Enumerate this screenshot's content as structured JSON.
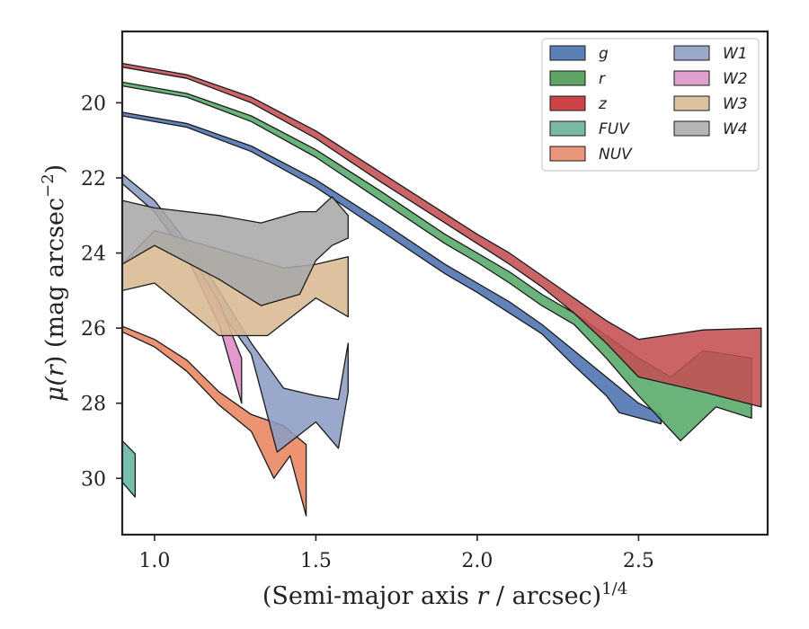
{
  "chart_data": {
    "type": "area",
    "xlabel": "(Semi-major axis r / arcsec)",
    "xlabel_parts": {
      "pre": "(Semi-major axis ",
      "var": "r",
      "post": " / arcsec)",
      "exp": "1/4"
    },
    "ylabel": "μ(r) (mag arcsec⁻²)",
    "ylabel_parts": {
      "mu": "μ(",
      "var": "r",
      "mid": ") (mag arcsec",
      "exp": "−2",
      "end": ")"
    },
    "xlim": [
      0.9,
      2.9
    ],
    "ylim": [
      31.5,
      18.1
    ],
    "y_inverted": true,
    "grid": false,
    "legend_position": "top-right",
    "legend_columns": 2,
    "xticks": [
      1.0,
      1.5,
      2.0,
      2.5
    ],
    "xtick_labels": [
      "1.0",
      "1.5",
      "2.0",
      "2.5"
    ],
    "yticks": [
      20,
      22,
      24,
      26,
      28,
      30
    ],
    "ytick_labels": [
      "20",
      "22",
      "24",
      "26",
      "28",
      "30"
    ],
    "series": [
      {
        "name": "g",
        "color": "#4c72b0",
        "legend_color": "#5a80b5",
        "upper": [
          [
            0.9,
            20.25
          ],
          [
            1.1,
            20.55
          ],
          [
            1.3,
            21.15
          ],
          [
            1.5,
            22.05
          ],
          [
            1.7,
            23.15
          ],
          [
            1.9,
            24.3
          ],
          [
            2.0,
            24.8
          ],
          [
            2.1,
            25.3
          ],
          [
            2.2,
            25.9
          ],
          [
            2.3,
            26.6
          ],
          [
            2.4,
            27.3
          ],
          [
            2.5,
            28.0
          ],
          [
            2.57,
            28.3
          ]
        ],
        "lower": [
          [
            0.9,
            20.35
          ],
          [
            1.1,
            20.65
          ],
          [
            1.3,
            21.3
          ],
          [
            1.5,
            22.25
          ],
          [
            1.7,
            23.4
          ],
          [
            1.9,
            24.55
          ],
          [
            2.0,
            25.05
          ],
          [
            2.1,
            25.6
          ],
          [
            2.2,
            26.15
          ],
          [
            2.3,
            27.0
          ],
          [
            2.4,
            27.8
          ],
          [
            2.44,
            28.25
          ],
          [
            2.57,
            28.55
          ]
        ]
      },
      {
        "name": "r",
        "color": "#55a868",
        "legend_color": "#5fa365",
        "upper": [
          [
            0.9,
            19.45
          ],
          [
            1.1,
            19.75
          ],
          [
            1.3,
            20.35
          ],
          [
            1.5,
            21.25
          ],
          [
            1.7,
            22.35
          ],
          [
            1.9,
            23.5
          ],
          [
            2.0,
            24.0
          ],
          [
            2.1,
            24.5
          ],
          [
            2.2,
            25.1
          ],
          [
            2.3,
            25.6
          ],
          [
            2.4,
            26.2
          ],
          [
            2.5,
            26.8
          ],
          [
            2.6,
            27.3
          ],
          [
            2.7,
            26.6
          ],
          [
            2.85,
            26.8
          ]
        ],
        "lower": [
          [
            0.9,
            19.55
          ],
          [
            1.1,
            19.85
          ],
          [
            1.3,
            20.5
          ],
          [
            1.5,
            21.45
          ],
          [
            1.7,
            22.6
          ],
          [
            1.9,
            23.75
          ],
          [
            2.0,
            24.25
          ],
          [
            2.1,
            24.8
          ],
          [
            2.2,
            25.4
          ],
          [
            2.3,
            25.9
          ],
          [
            2.4,
            26.8
          ],
          [
            2.5,
            27.8
          ],
          [
            2.63,
            29.0
          ],
          [
            2.74,
            28.1
          ],
          [
            2.85,
            28.4
          ]
        ]
      },
      {
        "name": "z",
        "color": "#c44e52",
        "legend_color": "#cc4448",
        "upper": [
          [
            0.9,
            18.95
          ],
          [
            1.1,
            19.25
          ],
          [
            1.3,
            19.85
          ],
          [
            1.5,
            20.75
          ],
          [
            1.7,
            21.85
          ],
          [
            1.9,
            22.95
          ],
          [
            2.0,
            23.5
          ],
          [
            2.1,
            24.0
          ],
          [
            2.2,
            24.6
          ],
          [
            2.3,
            25.2
          ],
          [
            2.4,
            25.8
          ],
          [
            2.5,
            26.3
          ],
          [
            2.7,
            26.05
          ],
          [
            2.88,
            26.0
          ]
        ],
        "lower": [
          [
            0.9,
            19.05
          ],
          [
            1.1,
            19.35
          ],
          [
            1.3,
            20.0
          ],
          [
            1.5,
            20.95
          ],
          [
            1.7,
            22.1
          ],
          [
            1.9,
            23.2
          ],
          [
            2.0,
            23.75
          ],
          [
            2.1,
            24.3
          ],
          [
            2.2,
            24.9
          ],
          [
            2.3,
            25.6
          ],
          [
            2.4,
            26.4
          ],
          [
            2.5,
            27.3
          ],
          [
            2.7,
            27.7
          ],
          [
            2.88,
            28.1
          ]
        ]
      },
      {
        "name": "FUV",
        "color": "#64b5a0",
        "legend_color": "#7ab8a4",
        "upper": [
          [
            0.9,
            29.0
          ],
          [
            0.94,
            29.35
          ]
        ],
        "lower": [
          [
            0.9,
            30.1
          ],
          [
            0.94,
            30.5
          ]
        ]
      },
      {
        "name": "NUV",
        "color": "#e8845e",
        "legend_color": "#e9967a",
        "upper": [
          [
            0.9,
            25.95
          ],
          [
            1.0,
            26.3
          ],
          [
            1.1,
            26.85
          ],
          [
            1.2,
            27.7
          ],
          [
            1.3,
            28.3
          ],
          [
            1.4,
            28.6
          ],
          [
            1.47,
            29.1
          ]
        ],
        "lower": [
          [
            0.9,
            26.1
          ],
          [
            1.0,
            26.5
          ],
          [
            1.1,
            27.15
          ],
          [
            1.2,
            28.05
          ],
          [
            1.3,
            28.75
          ],
          [
            1.37,
            30.0
          ],
          [
            1.42,
            29.4
          ],
          [
            1.47,
            31.0
          ]
        ]
      },
      {
        "name": "W1",
        "color": "#8c9dc4",
        "legend_color": "#9aa8c9",
        "upper": [
          [
            0.9,
            21.9
          ],
          [
            1.0,
            22.6
          ],
          [
            1.1,
            23.7
          ],
          [
            1.2,
            25.0
          ],
          [
            1.3,
            26.4
          ],
          [
            1.4,
            27.6
          ],
          [
            1.5,
            27.8
          ],
          [
            1.57,
            27.9
          ],
          [
            1.6,
            26.4
          ]
        ],
        "lower": [
          [
            0.9,
            22.15
          ],
          [
            1.0,
            22.9
          ],
          [
            1.1,
            24.1
          ],
          [
            1.2,
            25.5
          ],
          [
            1.3,
            26.7
          ],
          [
            1.38,
            29.3
          ],
          [
            1.5,
            28.5
          ],
          [
            1.57,
            29.2
          ],
          [
            1.6,
            27.7
          ]
        ]
      },
      {
        "name": "W2",
        "color": "#dd8cc4",
        "legend_color": "#dfa0cd",
        "upper": [
          [
            1.1,
            23.9
          ],
          [
            1.2,
            25.3
          ],
          [
            1.27,
            26.8
          ]
        ],
        "lower": [
          [
            1.1,
            24.1
          ],
          [
            1.2,
            25.9
          ],
          [
            1.27,
            28.0
          ]
        ]
      },
      {
        "name": "W3",
        "color": "#d9b993",
        "legend_color": "#dbc3a1",
        "upper": [
          [
            0.9,
            24.3
          ],
          [
            1.0,
            23.4
          ],
          [
            1.2,
            23.9
          ],
          [
            1.4,
            24.4
          ],
          [
            1.5,
            24.3
          ],
          [
            1.6,
            24.1
          ]
        ],
        "lower": [
          [
            0.9,
            25.0
          ],
          [
            1.0,
            24.8
          ],
          [
            1.2,
            26.2
          ],
          [
            1.35,
            26.2
          ],
          [
            1.5,
            25.2
          ],
          [
            1.6,
            25.7
          ]
        ]
      },
      {
        "name": "W4",
        "color": "#a8a8a8",
        "legend_color": "#b5b5b5",
        "upper": [
          [
            0.9,
            22.6
          ],
          [
            1.0,
            22.8
          ],
          [
            1.2,
            23.0
          ],
          [
            1.33,
            23.2
          ],
          [
            1.45,
            22.9
          ],
          [
            1.5,
            22.9
          ],
          [
            1.55,
            22.5
          ],
          [
            1.6,
            23.0
          ]
        ],
        "lower": [
          [
            0.9,
            24.3
          ],
          [
            1.0,
            23.8
          ],
          [
            1.2,
            24.7
          ],
          [
            1.33,
            25.4
          ],
          [
            1.45,
            25.1
          ],
          [
            1.5,
            24.2
          ],
          [
            1.55,
            23.8
          ],
          [
            1.6,
            23.6
          ]
        ]
      }
    ],
    "legend": [
      {
        "label": "g",
        "color": "#5a80b5"
      },
      {
        "label": "r",
        "color": "#5fa365"
      },
      {
        "label": "z",
        "color": "#cc4448"
      },
      {
        "label": "FUV",
        "color": "#7ab8a4"
      },
      {
        "label": "NUV",
        "color": "#e9967a"
      },
      {
        "label": "W1",
        "color": "#9aa8c9"
      },
      {
        "label": "W2",
        "color": "#dfa0cd"
      },
      {
        "label": "W3",
        "color": "#dbc3a1"
      },
      {
        "label": "W4",
        "color": "#b5b5b5"
      }
    ]
  }
}
